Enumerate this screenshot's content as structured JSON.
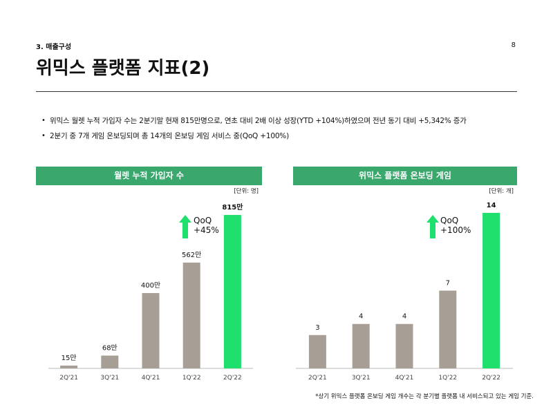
{
  "header": {
    "section": "3. 매출구성",
    "page_number": "8",
    "title": "위믹스 플랫폼 지표(2)"
  },
  "bullets": [
    "위믹스 월렛 누적 가입자 수는 2분기말 현재 815만명으로, 연초 대비 2배 이상 성장(YTD +104%)하였으며 전년 동기 대비 +5,342% 증가",
    "2분기 중 7개 게임 온보딩되며 총 14개의 온보딩 게임 서비스 중(QoQ +100%)"
  ],
  "colors": {
    "header_green": "#3aa76d",
    "bar_gray": "#a79e96",
    "bar_highlight": "#1fe06c",
    "arrow_green": "#1fe06c"
  },
  "chart_data": [
    {
      "type": "bar",
      "title": "월렛 누적 가입자 수",
      "unit_label": "[단위: 명]",
      "categories": [
        "2Q'21",
        "3Q'21",
        "4Q'21",
        "1Q'22",
        "2Q'22"
      ],
      "values": [
        15,
        68,
        400,
        562,
        815
      ],
      "data_labels": [
        "15만",
        "68만",
        "400만",
        "562만",
        "815만"
      ],
      "highlight_index": 4,
      "ylim": [
        0,
        815
      ],
      "annotation": {
        "line1": "QoQ",
        "line2": "+45%"
      }
    },
    {
      "type": "bar",
      "title": "위믹스 플랫폼 온보딩 게임",
      "unit_label": "[단위: 개]",
      "categories": [
        "2Q'21",
        "3Q'21",
        "4Q'21",
        "1Q'22",
        "2Q'22"
      ],
      "values": [
        3,
        4,
        4,
        7,
        14
      ],
      "data_labels": [
        "3",
        "4",
        "4",
        "7",
        "14"
      ],
      "highlight_index": 4,
      "ylim": [
        0,
        14
      ],
      "annotation": {
        "line1": "QoQ",
        "line2": "+100%"
      }
    }
  ],
  "footnote": "*상기 위믹스 플랫폼 온보딩 게임 개수는 각 분기별 플랫폼 내 서비스되고 있는 게임 기준."
}
